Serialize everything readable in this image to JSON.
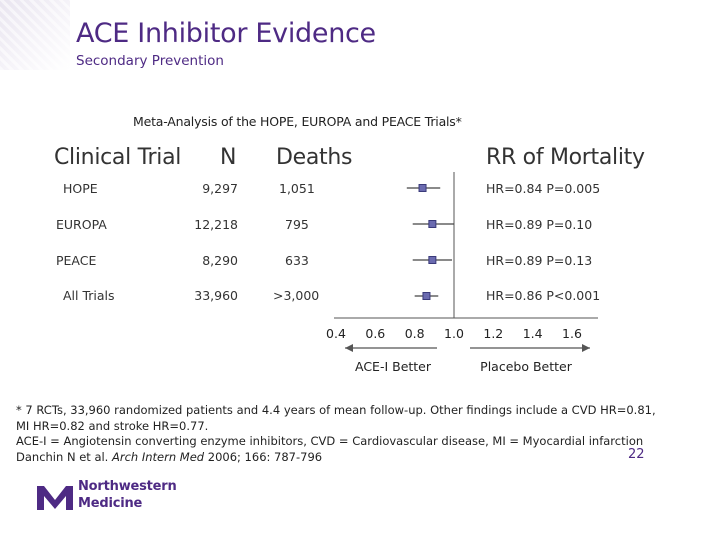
{
  "slide": {
    "title": "ACE Inhibitor Evidence",
    "subtitle": "Secondary Prevention",
    "page_number": "22"
  },
  "table": {
    "headers": {
      "trial": "Clinical Trial",
      "n": "N",
      "deaths": "Deaths",
      "rr": "RR of Mortality"
    },
    "rows": [
      {
        "trial": "HOPE",
        "n": "9,297",
        "deaths": "1,051",
        "result": "HR=0.84 P=0.005"
      },
      {
        "trial": "EUROPA",
        "n": "12,218",
        "deaths": "795",
        "result": "HR=0.89 P=0.10"
      },
      {
        "trial": "PEACE",
        "n": "8,290",
        "deaths": "633",
        "result": "HR=0.89 P=0.13"
      },
      {
        "trial": "All Trials",
        "n": "33,960",
        "deaths": ">3,000",
        "result": "HR=0.86 P<0.001"
      }
    ]
  },
  "chart_data": {
    "type": "scatter",
    "subtype": "forest-plot",
    "title": "Meta-Analysis of the HOPE, EUROPA and PEACE Trials*",
    "categories": [
      "HOPE",
      "EUROPA",
      "PEACE",
      "All Trials"
    ],
    "points": [
      {
        "label": "HOPE",
        "hr": 0.84,
        "ci_low": 0.76,
        "ci_high": 0.93
      },
      {
        "label": "EUROPA",
        "hr": 0.89,
        "ci_low": 0.79,
        "ci_high": 1.0
      },
      {
        "label": "PEACE",
        "hr": 0.89,
        "ci_low": 0.79,
        "ci_high": 0.99
      },
      {
        "label": "All Trials",
        "hr": 0.86,
        "ci_low": 0.8,
        "ci_high": 0.92
      }
    ],
    "x_ticks": [
      "0.4",
      "0.6",
      "0.8",
      "1.0",
      "1.2",
      "1.4",
      "1.6"
    ],
    "x_tick_values": [
      0.4,
      0.6,
      0.8,
      1.0,
      1.2,
      1.4,
      1.6
    ],
    "xlim": [
      0.4,
      1.6
    ],
    "reference_line": 1.0,
    "left_label": "ACE-I Better",
    "right_label": "Placebo Better",
    "marker_color": "#6b6bb0",
    "marker_border": "#3a3a7a"
  },
  "footnote": {
    "line1": "* 7 RCTs, 33,960 randomized patients and 4.4 years of mean follow-up. Other findings include a CVD HR=0.81,",
    "line2": "MI HR=0.82 and stroke HR=0.77.",
    "line3": "ACE-I = Angiotensin converting enzyme inhibitors, CVD = Cardiovascular disease, MI = Myocardial infarction",
    "citation_authors": "Danchin N et al. ",
    "citation_journal": "Arch Intern Med",
    "citation_rest": " 2006; 166: 787-796"
  },
  "logo": {
    "line1": "Northwestern",
    "line2": "Medicine"
  },
  "colors": {
    "brand_purple": "#4e2a84"
  }
}
